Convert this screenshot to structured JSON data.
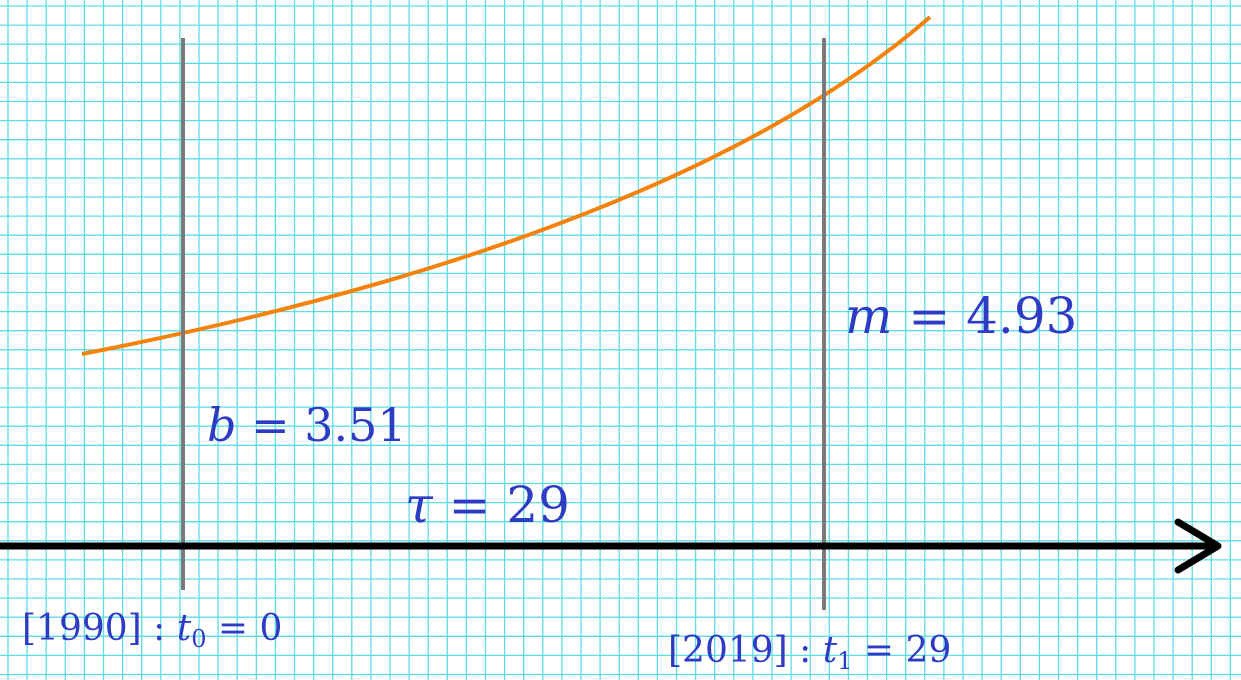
{
  "labels": {
    "b": {
      "var": "b",
      "eq": " = ",
      "value": "3.51"
    },
    "m": {
      "var": "m",
      "eq": " = ",
      "value": "4.93"
    },
    "tau": {
      "var": "τ",
      "eq": " = ",
      "value": "29"
    },
    "t0": {
      "year": "[1990]",
      "sep": " : ",
      "var": "t",
      "sub": "0",
      "eq": " = ",
      "value": "0"
    },
    "t1": {
      "year": "[2019]",
      "sep": " : ",
      "var": "t",
      "sub": "1",
      "eq": " = ",
      "value": "29"
    }
  },
  "colors": {
    "grid": "#5fdde6",
    "curve": "#f5820d",
    "axis": "#000000",
    "marker": "#7a7a7a",
    "label": "#2e3bc4"
  }
}
